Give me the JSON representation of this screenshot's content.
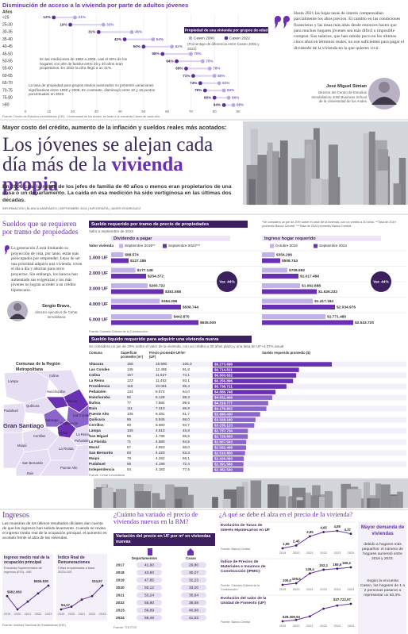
{
  "top_chart": {
    "title": "Disminución de acceso a la vivienda por parte de adultos jóvenes",
    "axis_label": "Años",
    "categories": [
      "<25",
      "25-30",
      "30-35",
      "35-40",
      "40-45",
      "45-50",
      "50-55",
      "55-60",
      "60-65",
      "65-70",
      "70-75",
      "75-80",
      ">80"
    ],
    "series": [
      {
        "name": "Casen 2006",
        "color": "#b9a5e6",
        "values": [
          21,
          33,
          45,
          54,
          62,
          70,
          75,
          78,
          80,
          82,
          84,
          86,
          88
        ],
        "value_labels": [
          "21%",
          "33%",
          "45%",
          "54%",
          "62%",
          "70%",
          "75%",
          "78%",
          "80%",
          "82%",
          "84%",
          "86%",
          "88%"
        ]
      },
      {
        "name": "Casen 2022",
        "color": "#5b2a9e",
        "values": [
          12,
          19,
          31,
          42,
          50,
          58,
          64,
          68,
          71,
          74,
          76,
          80,
          84
        ],
        "value_labels": [
          "12%",
          "19%",
          "31%",
          "42%",
          "50%",
          "58%",
          "64%",
          "68%",
          "71%",
          "74%",
          "76%",
          "80%",
          "84%"
        ]
      }
    ],
    "legend_title": "Propiedad de una vivienda por grupos de edad",
    "legend_note": "(Porcentaje de diferencia entre Casen 2006 y 2022)",
    "xlim": [
      0,
      90
    ],
    "xticks": [
      0,
      10,
      20,
      30,
      40,
      50,
      60,
      70,
      80,
      90
    ],
    "note_1": "En las mediciones de 1990 a 2006, casi el 50% de los hogares con jefe de familia entre 25 y 40 años eran propietarios. En 2022 la cifra llegó a un 31%.",
    "note_2": "La tasa de propiedad para grupos etarios avanzados no presentó variaciones significativas entre 1990 y 2006. En contraste, disminuyó entre 10 y 15 puntos porcentuales en 2022.",
    "source": "Fuente: Centro de Estudios Inmobiliarios (CEI) - Universidad de los Andes, en base a la encuesta Casen de cada año."
  },
  "quote_top": {
    "text": "Hasta 2021 las bajas tasas de interés compensaban parcialmente los altos precios. El cambio en las condiciones financieras y las tasas más altas desde entonces hacen que para muchos hogares jóvenes sea más difícil o imposible comprar. Sus salarios, que han subido poco en los últimos cinco años en términos reales, no son suficientes para pagar el dividendo de la vivienda en la que quieren vivir.",
    "name": "José Miguel Simian",
    "role": "Director del Centro de Estudios Inmobiliarios, ESE Business School de la Universidad de los Andes"
  },
  "article": {
    "kicker": "Mayor costo del crédito, aumento de la inflación y sueldos reales más acotados:",
    "headline": "Los jóvenes se alejan cada día más de la ",
    "headline_highlight": "vivienda propia",
    "lede": "En 2006 casi la mitad de los jefes de familia de 40 años o menos eran propietarios de una casa o un departamento. La caída en esa medición ha sido vertiginosa en las últimas dos décadas.",
    "byline": "INFORMACIÓN | BLANCA ANDRADES | SEPTIEMBRE 2024 | INFOGRAFÍA | JAVIER RODRÍGUEZ"
  },
  "side": {
    "title": "Sueldos que se requieren por tramo de propiedades",
    "body": "La generación Z está limitando su proyección de vida, por tanto, están más preocupados por emprender. Lejos de ser una prioridad adquirir una vivienda, viven el día a día y ahorran para otros proyectos. Sin embargo, los bancos han aumentado sus exigencias y los más jóvenes no logran acceder a un crédito hipotecario.",
    "quote_name": "Sergio Bravo,",
    "quote_role": "director ejecutivo de Cehar Inmobiliaria"
  },
  "map": {
    "title": "Comunas de la Región Metropolitana",
    "region_label": "Gran Santiago",
    "labels": [
      "Lampa",
      "Colina",
      "Quilicura",
      "Huechuraba",
      "Vitacura",
      "Las Condes",
      "Pudahuel",
      "Santiago",
      "Providencia",
      "Ñuñoa",
      "La Reina",
      "Maipú",
      "Cerrillos",
      "Peñalolén",
      "La Florida",
      "San Bernardo",
      "Puente Alto",
      "Buin"
    ]
  },
  "table_tramo": {
    "title": "Sueldo requerido por tramo de precio de propiedades",
    "date": "Valor a septiembre de 2024",
    "footnote": "*Se considera un pie de 20% sobre el valor de la vivienda, con un crédito a 30 años. **Tasa de 2019 promedio Banco Central. ***Tasa de 2024 promedio Banco Central.",
    "group_1": "Dividendo a pagar",
    "group_2": "Ingreso hogar requerido",
    "col_label": "Valor vivienda",
    "legend_1": [
      "Septiembre 2019**",
      "Septiembre 2024***"
    ],
    "legend_2": [
      "Octubre 2019",
      "Septiembre 2024"
    ],
    "var_1": "Var. 44%",
    "var_2": "Var. 44%",
    "rows": [
      {
        "label": "1.000 UF",
        "dividendo": [
          88574,
          127186
        ],
        "dividendo_labels": [
          "$88.574",
          "$127.186"
        ],
        "ingreso": [
          354296,
          508744
        ],
        "ingreso_labels": [
          "$354.296",
          "$508.744"
        ]
      },
      {
        "label": "2.000 UF",
        "dividendo": [
          177148,
          254372
        ],
        "dividendo_labels": [
          "$177.148",
          "$254.372"
        ],
        "ingreso": [
          708592,
          1017488
        ],
        "ingreso_labels": [
          "$708.592",
          "$1.017.488"
        ]
      },
      {
        "label": "3.000 UF",
        "dividendo": [
          265722,
          381558
        ],
        "dividendo_labels": [
          "$265.722",
          "$381.558"
        ],
        "ingreso": [
          1062888,
          1526232
        ],
        "ingreso_labels": [
          "$1.062.888",
          "$1.526.232"
        ]
      },
      {
        "label": "4.000 UF",
        "dividendo": [
          354296,
          508744
        ],
        "dividendo_labels": [
          "$354.296",
          "$508.744"
        ],
        "ingreso": [
          1417184,
          2034976
        ],
        "ingreso_labels": [
          "$1.417.184",
          "$2.034.976"
        ]
      },
      {
        "label": "5.000 UF",
        "dividendo": [
          442870,
          635930
        ],
        "dividendo_labels": [
          "$442.870",
          "$635.930"
        ],
        "ingreso": [
          1771480,
          2543720
        ],
        "ingreso_labels": [
          "$1.771.480",
          "$2.543.720"
        ]
      }
    ],
    "source": "Fuente: Cámara Chilena de la Construcción"
  },
  "table_comunas": {
    "title": "Sueldo líquido requerido para adquirir una vivienda nueva",
    "subtitle": "Se considera un pie de 20% sobre el valor de la vivienda, con un crédito a 30 años plazo y una tasa de UF+4,37% anual",
    "columns": [
      "Comuna",
      "Superficie promedio (m²)",
      "Precio promedio (UF)",
      "UF/m²",
      "Sueldo requerido promedio ($)"
    ],
    "rows": [
      [
        "Vitacura",
        "156",
        "16.590",
        "106,3"
      ],
      [
        "Las Condes",
        "136",
        "12.485",
        "91,8"
      ],
      [
        "Colina",
        "157",
        "11.627",
        "74,1"
      ],
      [
        "La Reina",
        "123",
        "11.452",
        "93,1"
      ],
      [
        "Providencia",
        "118",
        "10.081",
        "85,4"
      ],
      [
        "Peñalolén",
        "134",
        "8.574",
        "64,0"
      ],
      [
        "Huechuraba",
        "92",
        "8.128",
        "88,3"
      ],
      [
        "Ñuñoa",
        "77",
        "7.584",
        "98,5"
      ],
      [
        "Buin",
        "111",
        "7.310",
        "65,9"
      ],
      [
        "Puente Alto",
        "105",
        "6.481",
        "61,7"
      ],
      [
        "Quilicura",
        "86",
        "5.845",
        "68,0"
      ],
      [
        "Cerrillos",
        "60",
        "5.680",
        "94,7"
      ],
      [
        "Lampa",
        "105",
        "4.810",
        "45,8"
      ],
      [
        "San Miguel",
        "56",
        "4.796",
        "85,6"
      ],
      [
        "La Florida",
        "71",
        "4.580",
        "64,5"
      ],
      [
        "Macul",
        "67",
        "4.553",
        "68,0"
      ],
      [
        "San Bernardo",
        "83",
        "4.420",
        "53,3"
      ],
      [
        "Maipú",
        "76",
        "4.262",
        "56,1"
      ],
      [
        "Pudahuel",
        "58",
        "4.199",
        "72,4"
      ],
      [
        "Independencia",
        "54",
        "4.183",
        "77,5"
      ]
    ],
    "sueldo": [
      9273698,
      6714811,
      6500632,
      6256896,
      5738721,
      4886748,
      4631906,
      4319777,
      4176902,
      3690430,
      3328160,
      3235123,
      2737734,
      2729693,
      2607543,
      2592468,
      2516850,
      2426093,
      2391566,
      2382540
    ],
    "sueldo_labels": [
      "$9.273.698",
      "$6.714.811",
      "$6.500.632",
      "$6.256.896",
      "$5.738.721",
      "$4.886.748",
      "$4.631.906",
      "$4.319.777",
      "$4.176.902",
      "$3.690.430",
      "$3.328.160",
      "$3.235.123",
      "$2.737.734",
      "$2.729.693",
      "$2.607.543",
      "$2.592.468",
      "$2.516.850",
      "$2.426.093",
      "$2.391.566",
      "$2.382.540"
    ],
    "source": "Fuente: Cehar Inmobiliaria"
  },
  "ingresos": {
    "title": "Ingresos",
    "text": "Las muestras de los últimos resultados oficiales dan cuenta de que los ingresos han subido levemente. Cuando se revisa el ingreso medio real de la ocupación principal, el aumento es acotado frente al alza de las viviendas.",
    "charts": [
      {
        "title": "Ingreso medio real de la ocupación principal",
        "subtitle": "Encuesta Suplementaria de Ingresos (ESI) - INE",
        "x": [
          "2019",
          "2020",
          "2021",
          "2022",
          "2023"
        ],
        "values": [
          602063,
          571240,
          589310,
          608455,
          626530
        ],
        "value_labels": [
          "$602.063",
          null,
          null,
          null,
          "$626.530"
        ]
      },
      {
        "title": "Índice Real de Remuneraciones",
        "subtitle": "Cifras empalmadas a base 2023=100",
        "x": [
          "2019",
          "2020",
          "2021",
          "2022",
          "2023"
        ],
        "values": [
          94.17,
          95.4,
          98.6,
          100.2,
          104.97
        ],
        "value_labels": [
          "94,17",
          null,
          null,
          null,
          "104,97"
        ]
      }
    ],
    "source": "Fuente: Instituto Nacional de Estadísticas (INE)"
  },
  "precio_rm": {
    "title": "¿Cuánto ha variado el precio de viviendas nuevas en la RM?",
    "box": "Variación del precio en UF por m² en viviendas nuevas",
    "columns": [
      "Departamentos",
      "Casas"
    ],
    "rows": [
      [
        "2017",
        "41,60",
        "29,80"
      ],
      [
        "2018",
        "43,60",
        "30,27"
      ],
      [
        "2019",
        "47,85",
        "32,23"
      ],
      [
        "2020",
        "50,12",
        "33,20"
      ],
      [
        "2021",
        "53,24",
        "35,64"
      ],
      [
        "2022",
        "55,80",
        "38,08"
      ],
      [
        "2023",
        "56,89",
        "40,68"
      ],
      [
        "2024",
        "58,49",
        "41,03"
      ]
    ],
    "source": "Fuente: TOCTOC"
  },
  "alza": {
    "title": "¿A qué se debe el alza en el precio de la vivienda?",
    "indicators": [
      {
        "title": "Evolución de Tasas de Interés Hipotecarios en UF",
        "source": "Fuente: Banco Central",
        "x": [
          "2019",
          "2020",
          "2021",
          "2022",
          "2023",
          "2024"
        ],
        "values": [
          1.99,
          2.45,
          3.95,
          4.65,
          4.85,
          4.37
        ],
        "value_labels": [
          "1,99",
          "2,45",
          "3,95",
          "4,65",
          "4,85",
          "4,37"
        ]
      },
      {
        "title": "Índice de Precios de Materiales e Insumos de Construcción (IPMIC)",
        "source": "Fuente: Cámara Chilena de la Construcción",
        "x": [
          "2019",
          "2020",
          "2021",
          "2022",
          "2023",
          "2024"
        ],
        "values": [
          100.0,
          105.5,
          139.4,
          152.1,
          155.6,
          160.2
        ],
        "value_labels": [
          "100,0",
          "105,5",
          "139,4",
          "152,1",
          "155,6",
          "160,2"
        ]
      },
      {
        "title": "Evolución del valor de la Unidad de Fomento (UF)",
        "source": "Fuente: Banco Central",
        "x": [
          "2019",
          "2020",
          "2021",
          "2022",
          "2023",
          "2024"
        ],
        "values": [
          28309.94,
          29070.33,
          30991.74,
          35110.98,
          36789.36,
          37722.67
        ],
        "value_labels": [
          "$28.309,94",
          null,
          null,
          null,
          null,
          "$37.722,67"
        ]
      }
    ],
    "sidebar_title": "Mayor demanda de viviendas",
    "sidebar_text": "debido a hogares más pequeños: el número de hogares aumentó entre 2019 y 2023.",
    "sidebar_text_2": "Según la encuesta Casen, los hogares de 1 a 2 personas pasaron a representar un 60,3%."
  }
}
